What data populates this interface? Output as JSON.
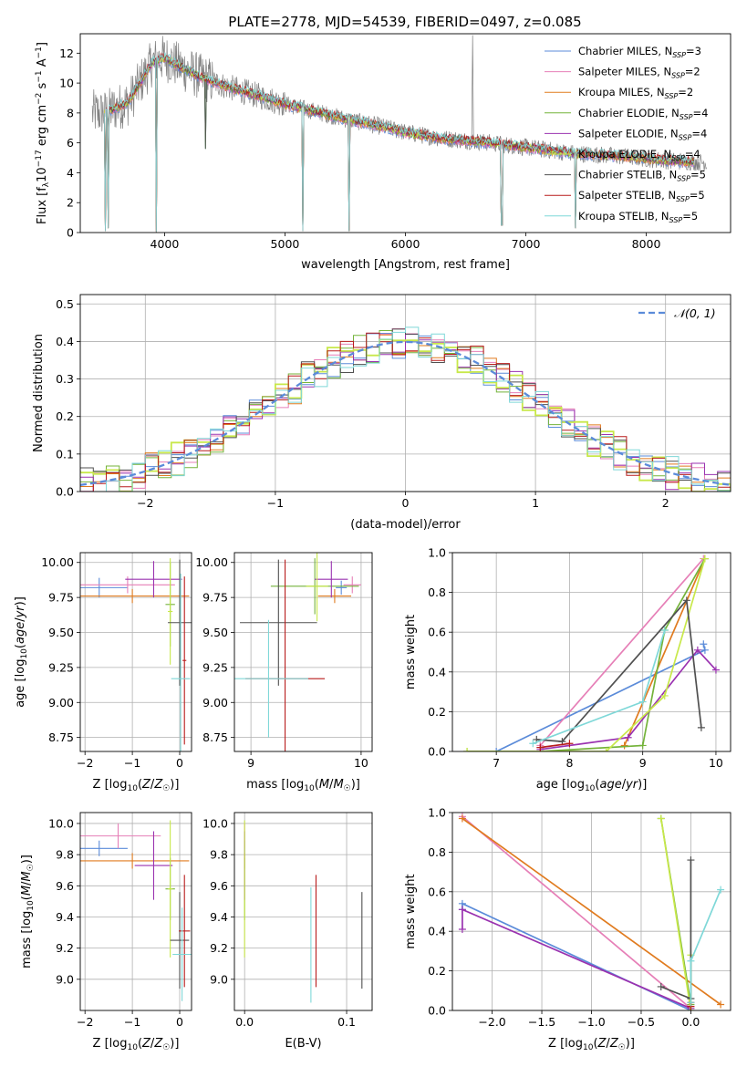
{
  "figure": {
    "title": "PLATE=2778, MJD=54539, FIBERID=0497, z=0.085"
  },
  "colors": {
    "Chabrier MILES": "#5b8bd9",
    "Salpeter MILES": "#e67fb7",
    "Kroupa MILES": "#e07b1f",
    "Chabrier ELODIE": "#74b33a",
    "Salpeter ELODIE": "#9a32b0",
    "Kroupa ELODIE": "#c8e84a",
    "Chabrier STELIB": "#505050",
    "Salpeter STELIB": "#b81c1c",
    "Kroupa STELIB": "#7fd8d8",
    "data": "#808080",
    "normal": "#5b8bd9"
  },
  "chart_data": [
    {
      "type": "line",
      "id": "spectrum",
      "title": "PLATE=2778, MJD=54539, FIBERID=0497, z=0.085",
      "xlabel": "wavelength [Angstrom, rest frame]",
      "ylabel": "Flux [f_λ 10^-17 erg cm^-2 s^-1 A^-1]",
      "xlim": [
        3300,
        8700
      ],
      "ylim": [
        0,
        13.3
      ],
      "xticks": [
        4000,
        5000,
        6000,
        7000,
        8000
      ],
      "yticks": [
        0,
        2,
        4,
        6,
        8,
        10,
        12
      ],
      "grid": false,
      "legend_position": "upper-right",
      "legend": [
        {
          "name": "Chabrier MILES",
          "n_ssp": "3"
        },
        {
          "name": "Salpeter MILES",
          "n_ssp": "2"
        },
        {
          "name": "Kroupa MILES",
          "n_ssp": "2"
        },
        {
          "name": "Chabrier ELODIE",
          "n_ssp": "4"
        },
        {
          "name": "Salpeter ELODIE",
          "n_ssp": "4"
        },
        {
          "name": "Kroupa ELODIE",
          "n_ssp": "4"
        },
        {
          "name": "Chabrier STELIB",
          "n_ssp": "5"
        },
        {
          "name": "Salpeter STELIB",
          "n_ssp": "5"
        },
        {
          "name": "Kroupa STELIB",
          "n_ssp": "5"
        }
      ],
      "continuum_x": [
        3500,
        3700,
        3900,
        4000,
        4150,
        4300,
        4500,
        4800,
        5000,
        5200,
        5500,
        5800,
        6000,
        6300,
        6600,
        7000,
        7400,
        7800,
        8200,
        8500
      ],
      "continuum_y": [
        8.0,
        8.7,
        11.4,
        11.7,
        11.0,
        10.4,
        9.8,
        9.1,
        8.6,
        8.2,
        7.6,
        7.1,
        6.7,
        6.3,
        6.1,
        5.7,
        5.3,
        5.1,
        4.8,
        4.7
      ],
      "absorption_lines": [
        {
          "x": 3510,
          "depth": 0.1
        },
        {
          "x": 3530,
          "depth": 0.3
        },
        {
          "x": 3933,
          "depth": 0.05
        },
        {
          "x": 4340,
          "depth": 5.6
        },
        {
          "x": 5150,
          "depth": 0.1
        },
        {
          "x": 5530,
          "depth": 0.1
        },
        {
          "x": 6800,
          "depth": 0.5
        },
        {
          "x": 7410,
          "depth": 0.3
        }
      ]
    },
    {
      "type": "histogram",
      "id": "residuals",
      "xlabel": "(data-model)/error",
      "ylabel": "Normed distribution",
      "xlim": [
        -2.5,
        2.5
      ],
      "ylim": [
        0,
        0.525
      ],
      "xticks": [
        -2,
        -1,
        0,
        1,
        2
      ],
      "yticks": [
        0.0,
        0.1,
        0.2,
        0.3,
        0.4,
        0.5
      ],
      "grid": true,
      "legend_position": "upper-right",
      "reference_curve": {
        "name": "𝒩(0, 1)",
        "mean": 0,
        "sigma": 1
      },
      "bin_width": 0.1
    },
    {
      "type": "scatter",
      "id": "age_vs_Z",
      "xlabel": "Z [log10(Z/Z☉)]",
      "ylabel": "age [log10(age/yr)]",
      "xlim": [
        -2.1,
        0.25
      ],
      "ylim": [
        8.65,
        10.07
      ],
      "xticks": [
        -2,
        -1,
        0
      ],
      "yticks": [
        8.75,
        9.0,
        9.25,
        9.5,
        9.75,
        10.0
      ],
      "grid": true,
      "points": [
        {
          "model": "Chabrier MILES",
          "x": -1.7,
          "y": 9.82,
          "xerr": 0.6,
          "yerr": 0.07
        },
        {
          "model": "Salpeter MILES",
          "x": -1.1,
          "y": 9.84,
          "xerr": 1.0,
          "yerr": 0.06
        },
        {
          "model": "Kroupa MILES",
          "x": -1.0,
          "y": 9.76,
          "xerr": 1.2,
          "yerr": 0.05
        },
        {
          "model": "Chabrier ELODIE",
          "x": -0.2,
          "y": 9.7,
          "xerr": 0.1,
          "yerr": 0.3
        },
        {
          "model": "Salpeter ELODIE",
          "x": -0.55,
          "y": 9.88,
          "xerr": 0.6,
          "yerr": 0.13
        },
        {
          "model": "Kroupa ELODIE",
          "x": -0.2,
          "y": 9.65,
          "xerr": 0.05,
          "yerr": 0.38
        },
        {
          "model": "Chabrier STELIB",
          "x": 0.0,
          "y": 9.57,
          "xerr": 0.25,
          "yerr": 0.45
        },
        {
          "model": "Salpeter STELIB",
          "x": 0.1,
          "y": 9.3,
          "xerr": 0.04,
          "yerr": 0.6
        },
        {
          "model": "Kroupa STELIB",
          "x": 0.02,
          "y": 9.17,
          "xerr": 0.2,
          "yerr": 0.75
        }
      ]
    },
    {
      "type": "scatter",
      "id": "age_vs_mass",
      "xlabel": "mass [log10(M/M☉)]",
      "ylabel": "",
      "xlim": [
        8.85,
        10.1
      ],
      "ylim": [
        8.65,
        10.07
      ],
      "xticks": [
        9,
        10
      ],
      "yticks": [
        8.75,
        9.0,
        9.25,
        9.5,
        9.75,
        10.0
      ],
      "grid": true,
      "points": [
        {
          "model": "Chabrier MILES",
          "x": 9.82,
          "y": 9.82,
          "xerr": 0.05,
          "yerr": 0.05
        },
        {
          "model": "Salpeter MILES",
          "x": 9.92,
          "y": 9.84,
          "xerr": 0.08,
          "yerr": 0.06
        },
        {
          "model": "Kroupa MILES",
          "x": 9.76,
          "y": 9.76,
          "xerr": 0.15,
          "yerr": 0.05
        },
        {
          "model": "Chabrier ELODIE",
          "x": 9.58,
          "y": 9.83,
          "xerr": 0.4,
          "yerr": 0.2
        },
        {
          "model": "Salpeter ELODIE",
          "x": 9.73,
          "y": 9.88,
          "xerr": 0.15,
          "yerr": 0.13
        },
        {
          "model": "Kroupa ELODIE",
          "x": 9.6,
          "y": 9.83,
          "xerr": 0.1,
          "yerr": 0.25
        },
        {
          "model": "Chabrier STELIB",
          "x": 9.25,
          "y": 9.57,
          "xerr": 0.35,
          "yerr": 0.45
        },
        {
          "model": "Salpeter STELIB",
          "x": 9.31,
          "y": 9.17,
          "xerr": 0.36,
          "yerr": 0.85
        },
        {
          "model": "Kroupa STELIB",
          "x": 9.16,
          "y": 9.17,
          "xerr": 0.36,
          "yerr": 0.42
        }
      ]
    },
    {
      "type": "line",
      "id": "weight_vs_age",
      "xlabel": "age [log10(age/yr)]",
      "ylabel": "mass weight",
      "xlim": [
        6.4,
        10.2
      ],
      "ylim": [
        0,
        1.0
      ],
      "xticks": [
        7,
        8,
        9,
        10
      ],
      "yticks": [
        0.0,
        0.2,
        0.4,
        0.6,
        0.8,
        1.0
      ],
      "grid": true,
      "series": [
        {
          "model": "Chabrier MILES",
          "x": [
            7.0,
            9.85,
            9.83
          ],
          "y": [
            0.0,
            0.51,
            0.54
          ]
        },
        {
          "model": "Salpeter MILES",
          "x": [
            7.6,
            9.83
          ],
          "y": [
            0.03,
            0.97
          ]
        },
        {
          "model": "Kroupa MILES",
          "x": [
            8.75,
            9.85
          ],
          "y": [
            0.03,
            0.97
          ]
        },
        {
          "model": "Chabrier ELODIE",
          "x": [
            6.6,
            7.6,
            9.0,
            9.3,
            9.85
          ],
          "y": [
            0.0,
            0.0,
            0.03,
            0.61,
            0.97
          ]
        },
        {
          "model": "Salpeter ELODIE",
          "x": [
            7.6,
            8.8,
            9.75,
            10.0
          ],
          "y": [
            0.01,
            0.07,
            0.51,
            0.41
          ]
        },
        {
          "model": "Kroupa ELODIE",
          "x": [
            6.6,
            8.5,
            9.3,
            9.85
          ],
          "y": [
            0.0,
            0.0,
            0.28,
            0.97
          ]
        },
        {
          "model": "Chabrier STELIB",
          "x": [
            7.55,
            7.9,
            9.6,
            9.8
          ],
          "y": [
            0.06,
            0.05,
            0.76,
            0.12
          ]
        },
        {
          "model": "Salpeter STELIB",
          "x": [
            7.6,
            8.0
          ],
          "y": [
            0.02,
            0.04
          ]
        },
        {
          "model": "Kroupa STELIB",
          "x": [
            7.5,
            9.0,
            9.3
          ],
          "y": [
            0.04,
            0.25,
            0.61
          ]
        }
      ]
    },
    {
      "type": "scatter",
      "id": "mass_vs_Z",
      "xlabel": "Z [log10(Z/Z☉)]",
      "ylabel": "mass [log10(M/M☉)]",
      "xlim": [
        -2.1,
        0.25
      ],
      "ylim": [
        8.8,
        10.07
      ],
      "xticks": [
        -2,
        -1,
        0
      ],
      "yticks": [
        9.0,
        9.2,
        9.4,
        9.6,
        9.8,
        10.0
      ],
      "grid": true,
      "points": [
        {
          "model": "Chabrier MILES",
          "x": -1.7,
          "y": 9.84,
          "xerr": 0.6,
          "yerr": 0.05
        },
        {
          "model": "Salpeter MILES",
          "x": -1.3,
          "y": 9.92,
          "xerr": 0.9,
          "yerr": 0.08
        },
        {
          "model": "Kroupa MILES",
          "x": -1.0,
          "y": 9.76,
          "xerr": 1.2,
          "yerr": 0.05
        },
        {
          "model": "Chabrier ELODIE",
          "x": -0.2,
          "y": 9.58,
          "xerr": 0.1,
          "yerr": 0.2
        },
        {
          "model": "Salpeter ELODIE",
          "x": -0.55,
          "y": 9.73,
          "xerr": 0.4,
          "yerr": 0.22
        },
        {
          "model": "Kroupa ELODIE",
          "x": -0.2,
          "y": 9.58,
          "xerr": 0.05,
          "yerr": 0.44
        },
        {
          "model": "Chabrier STELIB",
          "x": 0.0,
          "y": 9.25,
          "xerr": 0.2,
          "yerr": 0.31
        },
        {
          "model": "Salpeter STELIB",
          "x": 0.1,
          "y": 9.31,
          "xerr": 0.12,
          "yerr": 0.36
        },
        {
          "model": "Kroupa STELIB",
          "x": 0.05,
          "y": 9.16,
          "xerr": 0.2,
          "yerr": 0.3
        }
      ]
    },
    {
      "type": "scatter",
      "id": "mass_vs_ebv",
      "xlabel": "E(B-V)",
      "ylabel": "",
      "xlim": [
        -0.01,
        0.125
      ],
      "ylim": [
        8.8,
        10.07
      ],
      "xticks": [
        0.0,
        0.1
      ],
      "yticks": [
        9.0,
        9.2,
        9.4,
        9.6,
        9.8,
        10.0
      ],
      "grid": true,
      "points": [
        {
          "model": "Chabrier MILES",
          "x": 0.0,
          "y": 9.84,
          "xerr": 0.0,
          "yerr": 0.05
        },
        {
          "model": "Salpeter MILES",
          "x": 0.0,
          "y": 9.92,
          "xerr": 0.0,
          "yerr": 0.08
        },
        {
          "model": "Kroupa MILES",
          "x": 0.0,
          "y": 9.76,
          "xerr": 0.0,
          "yerr": 0.05
        },
        {
          "model": "Chabrier ELODIE",
          "x": 0.0,
          "y": 9.58,
          "xerr": 0.0,
          "yerr": 0.2
        },
        {
          "model": "Salpeter ELODIE",
          "x": 0.0,
          "y": 9.73,
          "xerr": 0.0,
          "yerr": 0.22
        },
        {
          "model": "Kroupa ELODIE",
          "x": 0.0,
          "y": 9.58,
          "xerr": 0.0,
          "yerr": 0.44
        },
        {
          "model": "Chabrier STELIB",
          "x": 0.115,
          "y": 9.25,
          "xerr": 0.0,
          "yerr": 0.31
        },
        {
          "model": "Salpeter STELIB",
          "x": 0.07,
          "y": 9.31,
          "xerr": 0.0,
          "yerr": 0.36
        },
        {
          "model": "Kroupa STELIB",
          "x": 0.065,
          "y": 9.22,
          "xerr": 0.0,
          "yerr": 0.37
        }
      ]
    },
    {
      "type": "line",
      "id": "weight_vs_Z",
      "xlabel": "Z [log10(Z/Z☉)]",
      "ylabel": "mass weight",
      "xlim": [
        -2.4,
        0.4
      ],
      "ylim": [
        0,
        1.0
      ],
      "xticks": [
        -2.0,
        -1.5,
        -1.0,
        -0.5,
        0.0
      ],
      "yticks": [
        0.0,
        0.2,
        0.4,
        0.6,
        0.8,
        1.0
      ],
      "grid": true,
      "series": [
        {
          "model": "Chabrier MILES",
          "x": [
            -2.3,
            -2.3,
            0.0
          ],
          "y": [
            0.51,
            0.54,
            0.0
          ]
        },
        {
          "model": "Salpeter MILES",
          "x": [
            -2.3,
            0.0
          ],
          "y": [
            0.98,
            0.01
          ]
        },
        {
          "model": "Kroupa MILES",
          "x": [
            -2.3,
            0.3
          ],
          "y": [
            0.97,
            0.03
          ]
        },
        {
          "model": "Chabrier ELODIE",
          "x": [
            -0.3,
            0.0
          ],
          "y": [
            0.97,
            0.03
          ]
        },
        {
          "model": "Salpeter ELODIE",
          "x": [
            -2.3,
            -2.3,
            0.0
          ],
          "y": [
            0.41,
            0.51,
            0.01
          ]
        },
        {
          "model": "Kroupa ELODIE",
          "x": [
            -0.3,
            0.0,
            0.0
          ],
          "y": [
            0.97,
            0.0,
            0.28
          ]
        },
        {
          "model": "Chabrier STELIB",
          "x": [
            -0.3,
            0.0,
            0.0
          ],
          "y": [
            0.12,
            0.06,
            0.76
          ]
        },
        {
          "model": "Salpeter STELIB",
          "x": [
            0.0,
            0.0
          ],
          "y": [
            0.02,
            0.04
          ]
        },
        {
          "model": "Kroupa STELIB",
          "x": [
            0.0,
            0.0,
            0.3
          ],
          "y": [
            0.04,
            0.25,
            0.61
          ]
        }
      ]
    }
  ]
}
